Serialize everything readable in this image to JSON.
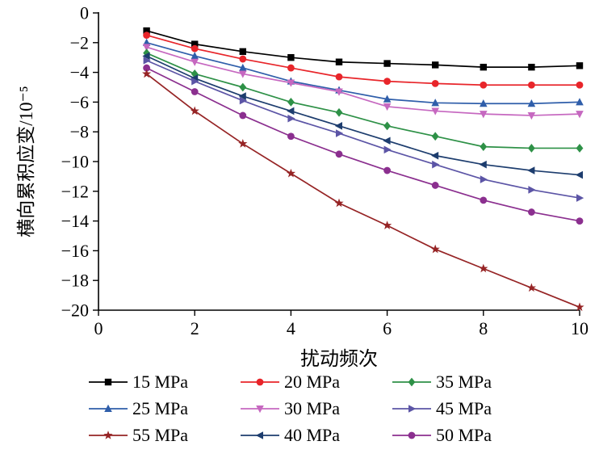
{
  "chart_data": {
    "type": "line",
    "x": [
      1,
      2,
      3,
      4,
      5,
      6,
      7,
      8,
      9,
      10
    ],
    "xlabel": "扰动频次",
    "ylabel": "横向累积应变/10⁻⁵",
    "xlim": [
      0,
      10
    ],
    "ylim": [
      -20,
      0
    ],
    "xticks": [
      0,
      2,
      4,
      6,
      8,
      10
    ],
    "yticks": [
      0,
      -2,
      -4,
      -6,
      -8,
      -10,
      -12,
      -14,
      -16,
      -18,
      -20
    ],
    "grid": false,
    "legend_position": "below",
    "legend_rows": [
      [
        "15 MPa",
        "20 MPa",
        "35 MPa"
      ],
      [
        "25 MPa",
        "30 MPa",
        "45 MPa"
      ],
      [
        "55 MPa",
        "40 MPa",
        "50 MPa"
      ]
    ],
    "series": [
      {
        "name": "15 MPa",
        "color": "#000000",
        "marker": "square",
        "values": [
          -1.2,
          -2.1,
          -2.6,
          -3.0,
          -3.3,
          -3.4,
          -3.5,
          -3.65,
          -3.65,
          -3.55
        ]
      },
      {
        "name": "20 MPa",
        "color": "#e8252a",
        "marker": "circle",
        "values": [
          -1.5,
          -2.4,
          -3.1,
          -3.7,
          -4.3,
          -4.6,
          -4.75,
          -4.85,
          -4.85,
          -4.85
        ]
      },
      {
        "name": "25 MPa",
        "color": "#2f5eaa",
        "marker": "triangle-up",
        "values": [
          -2.0,
          -2.9,
          -3.7,
          -4.6,
          -5.2,
          -5.8,
          -6.05,
          -6.1,
          -6.1,
          -6.0
        ]
      },
      {
        "name": "30 MPa",
        "color": "#c668c0",
        "marker": "triangle-down",
        "values": [
          -2.3,
          -3.3,
          -4.1,
          -4.7,
          -5.3,
          -6.3,
          -6.6,
          -6.8,
          -6.9,
          -6.8
        ]
      },
      {
        "name": "35 MPa",
        "color": "#2e9147",
        "marker": "diamond",
        "values": [
          -2.7,
          -4.1,
          -5.0,
          -6.0,
          -6.7,
          -7.6,
          -8.3,
          -9.0,
          -9.1,
          -9.1
        ]
      },
      {
        "name": "40 MPa",
        "color": "#1d3d6e",
        "marker": "triangle-left",
        "values": [
          -2.9,
          -4.4,
          -5.6,
          -6.6,
          -7.6,
          -8.6,
          -9.6,
          -10.2,
          -10.6,
          -10.9
        ]
      },
      {
        "name": "45 MPa",
        "color": "#5c55a6",
        "marker": "triangle-right",
        "values": [
          -3.2,
          -4.6,
          -5.9,
          -7.1,
          -8.1,
          -9.2,
          -10.2,
          -11.2,
          -11.9,
          -12.45
        ]
      },
      {
        "name": "50 MPa",
        "color": "#8b2f8f",
        "marker": "circle",
        "values": [
          -3.7,
          -5.3,
          -6.9,
          -8.3,
          -9.5,
          -10.6,
          -11.6,
          -12.6,
          -13.4,
          -14.0
        ]
      },
      {
        "name": "55 MPa",
        "color": "#962425",
        "marker": "star",
        "values": [
          -4.1,
          -6.6,
          -8.8,
          -10.8,
          -12.8,
          -14.3,
          -15.9,
          -17.2,
          -18.5,
          -19.8
        ]
      }
    ]
  }
}
